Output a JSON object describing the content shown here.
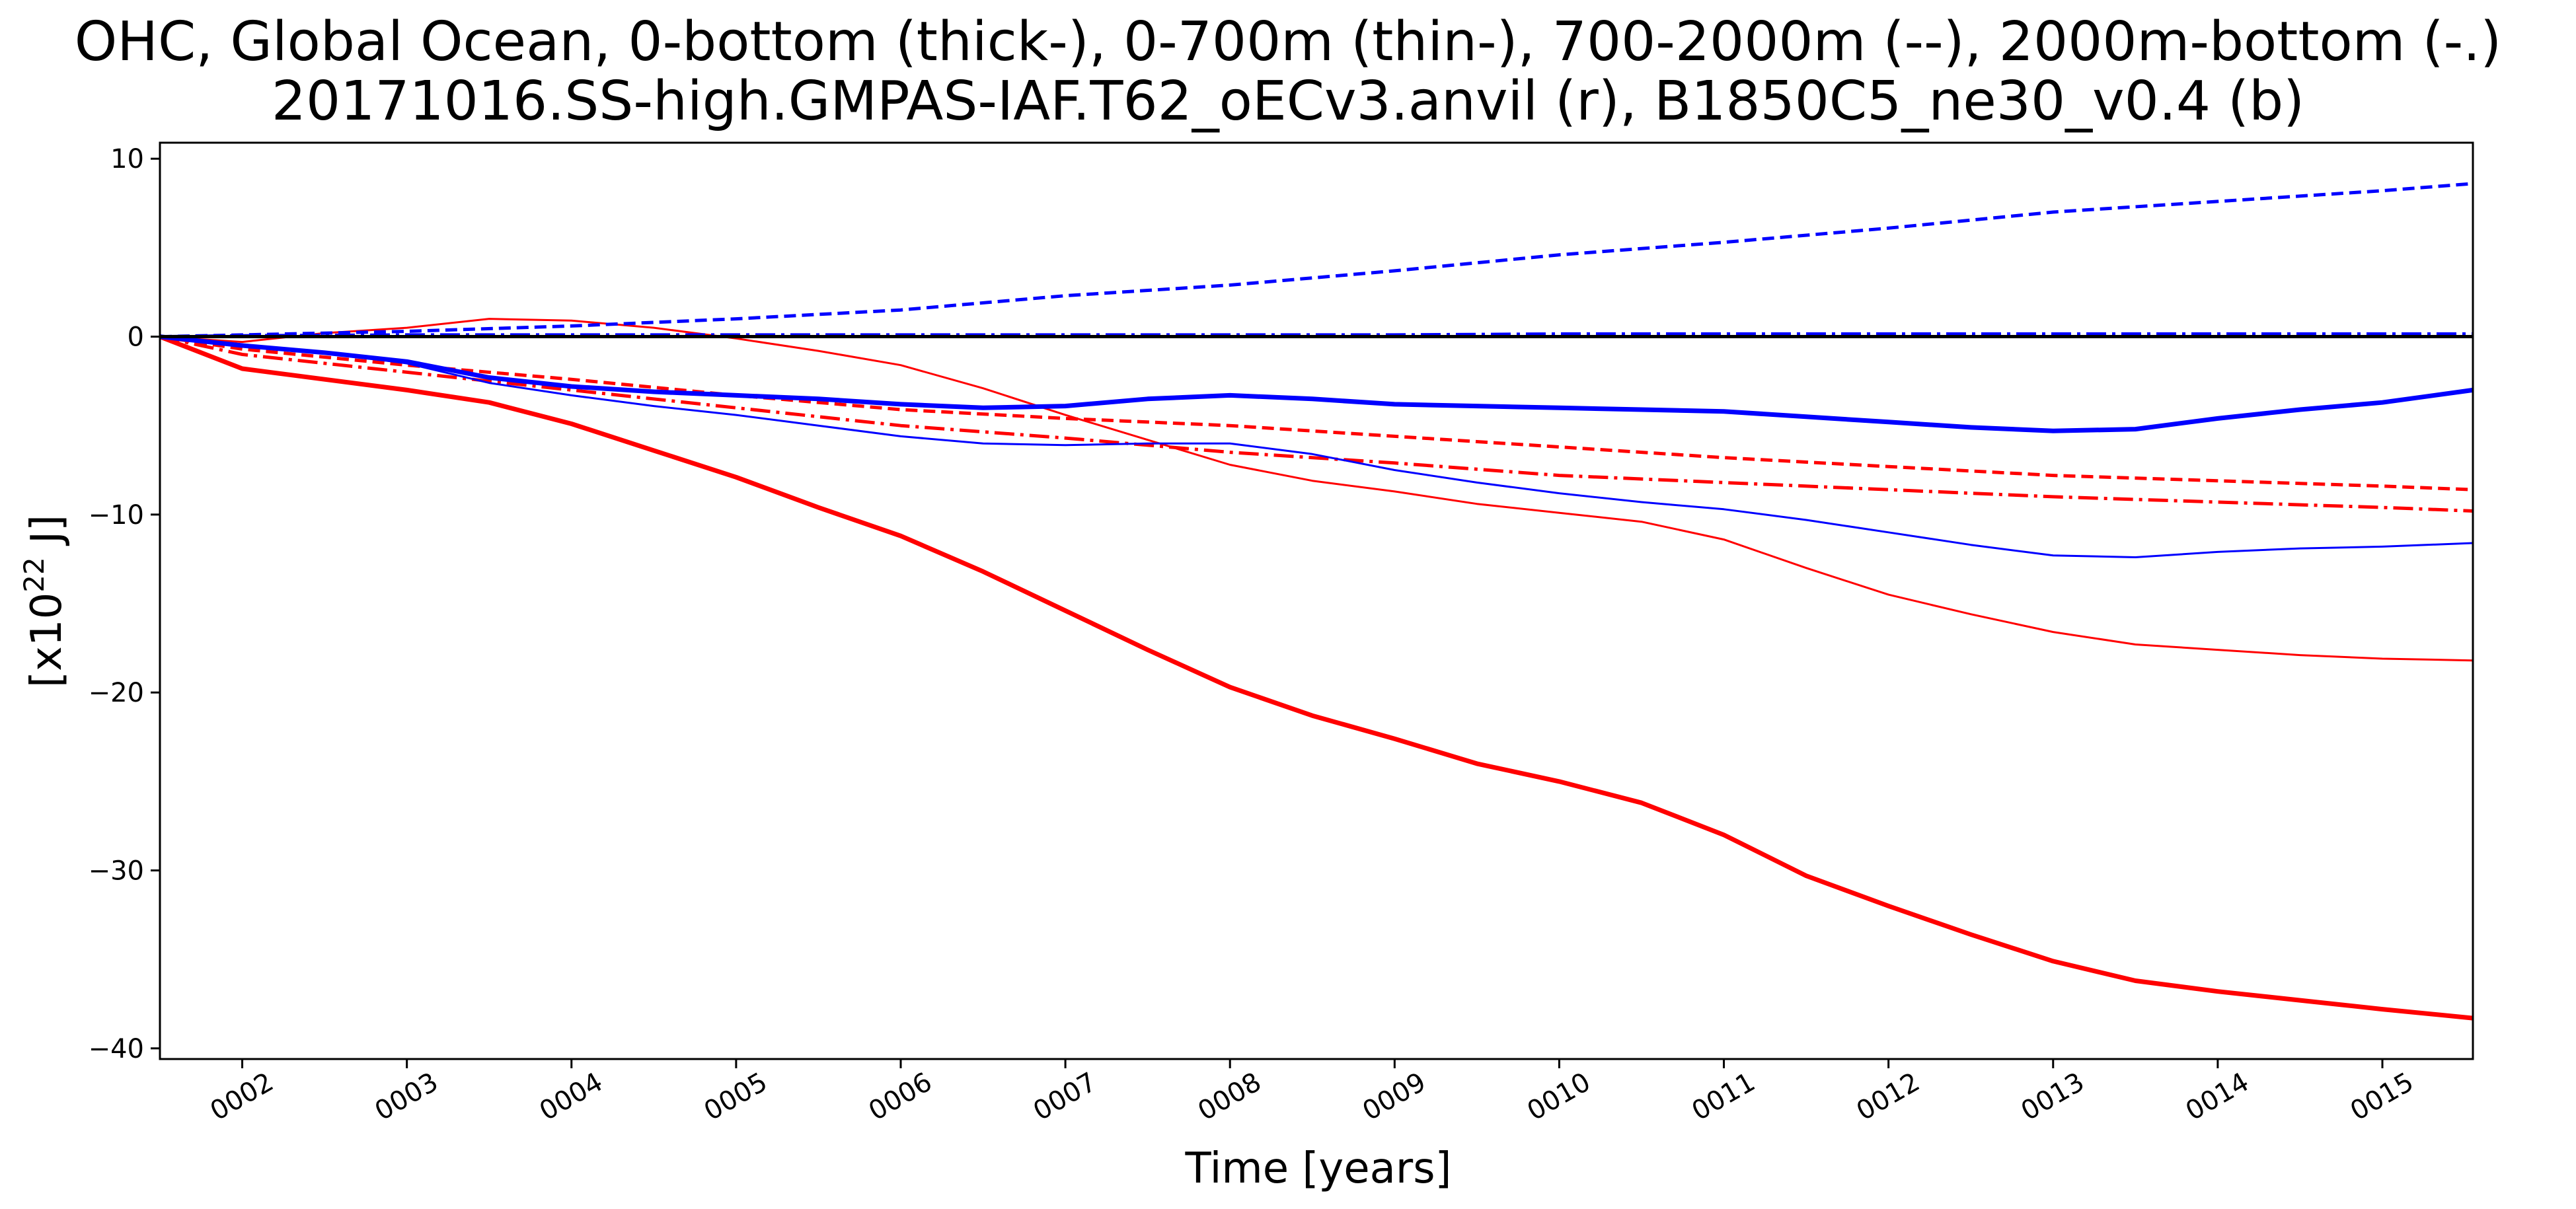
{
  "chart_data": {
    "type": "line",
    "title": "OHC, Global Ocean, 0-bottom (thick-), 0-700m (thin-), 700-2000m (--), 2000m-bottom (-.)",
    "subtitle": "20171016.SS-high.GMPAS-IAF.T62_oECv3.anvil (r), B1850C5_ne30_v0.4 (b)",
    "xlabel": "Time [years]",
    "ylabel_base": "[x10",
    "ylabel_exp": "22",
    "ylabel_unit": " J]",
    "xlim": [
      1.5,
      15.55
    ],
    "ylim": [
      -40.6,
      10.9
    ],
    "x_ticks": [
      {
        "value": 2,
        "label": "0002"
      },
      {
        "value": 3,
        "label": "0003"
      },
      {
        "value": 4,
        "label": "0004"
      },
      {
        "value": 5,
        "label": "0005"
      },
      {
        "value": 6,
        "label": "0006"
      },
      {
        "value": 7,
        "label": "0007"
      },
      {
        "value": 8,
        "label": "0008"
      },
      {
        "value": 9,
        "label": "0009"
      },
      {
        "value": 10,
        "label": "0010"
      },
      {
        "value": 11,
        "label": "0011"
      },
      {
        "value": 12,
        "label": "0012"
      },
      {
        "value": 13,
        "label": "0013"
      },
      {
        "value": 14,
        "label": "0014"
      },
      {
        "value": 15,
        "label": "0015"
      }
    ],
    "y_ticks": [
      {
        "value": 10,
        "label": "10"
      },
      {
        "value": 0,
        "label": "0"
      },
      {
        "value": -10,
        "label": "−10"
      },
      {
        "value": -20,
        "label": "−20"
      },
      {
        "value": -30,
        "label": "−30"
      },
      {
        "value": -40,
        "label": "−40"
      }
    ],
    "grid": false,
    "series": [
      {
        "color": "#ff0000",
        "width": 7,
        "dash": "solid",
        "x": [
          1.5,
          2.0,
          2.5,
          3.0,
          3.5,
          4.0,
          4.5,
          5.0,
          5.5,
          6.0,
          6.5,
          7.0,
          7.5,
          8.0,
          8.5,
          9.0,
          9.5,
          10.0,
          10.5,
          11.0,
          11.5,
          12.0,
          12.5,
          13.0,
          13.5,
          14.0,
          14.5,
          15.0,
          15.55
        ],
        "y": [
          0.0,
          -1.8,
          -2.4,
          -3.0,
          -3.7,
          -4.9,
          -6.4,
          -7.9,
          -9.6,
          -11.2,
          -13.2,
          -15.4,
          -17.6,
          -19.7,
          -21.3,
          -22.6,
          -24.0,
          -25.0,
          -26.2,
          -28.0,
          -30.3,
          -32.0,
          -33.6,
          -35.1,
          -36.2,
          -36.8,
          -37.3,
          -37.8,
          -38.3
        ]
      },
      {
        "color": "#ff0000",
        "width": 3,
        "dash": "solid",
        "x": [
          1.5,
          2.0,
          2.5,
          3.0,
          3.5,
          4.0,
          4.5,
          5.0,
          5.5,
          6.0,
          6.5,
          7.0,
          7.5,
          8.0,
          8.5,
          9.0,
          9.5,
          10.0,
          10.5,
          11.0,
          11.5,
          12.0,
          12.5,
          13.0,
          13.5,
          14.0,
          14.5,
          15.0,
          15.55
        ],
        "y": [
          0.0,
          -0.3,
          0.2,
          0.5,
          1.0,
          0.9,
          0.5,
          -0.1,
          -0.8,
          -1.6,
          -2.9,
          -4.4,
          -5.8,
          -7.2,
          -8.1,
          -8.7,
          -9.4,
          -9.9,
          -10.4,
          -11.4,
          -13.0,
          -14.5,
          -15.6,
          -16.6,
          -17.3,
          -17.6,
          -17.9,
          -18.1,
          -18.2
        ]
      },
      {
        "color": "#ff0000",
        "width": 5,
        "dash": "18 9",
        "x": [
          1.5,
          2.0,
          3.0,
          4.0,
          5.0,
          6.0,
          7.0,
          8.0,
          9.0,
          10.0,
          11.0,
          12.0,
          13.0,
          14.0,
          15.0,
          15.55
        ],
        "y": [
          0.0,
          -0.7,
          -1.6,
          -2.4,
          -3.3,
          -4.1,
          -4.6,
          -5.0,
          -5.6,
          -6.2,
          -6.8,
          -7.3,
          -7.8,
          -8.1,
          -8.4,
          -8.6
        ]
      },
      {
        "color": "#ff0000",
        "width": 5,
        "dash": "30 9 5 9",
        "x": [
          1.5,
          2.0,
          3.0,
          4.0,
          5.0,
          6.0,
          7.0,
          8.0,
          9.0,
          10.0,
          11.0,
          12.0,
          13.0,
          14.0,
          15.0,
          15.55
        ],
        "y": [
          0.0,
          -1.0,
          -2.0,
          -3.0,
          -4.0,
          -5.0,
          -5.7,
          -6.5,
          -7.1,
          -7.8,
          -8.2,
          -8.6,
          -9.0,
          -9.3,
          -9.6,
          -9.8
        ]
      },
      {
        "color": "#0000ff",
        "width": 7,
        "dash": "solid",
        "x": [
          1.5,
          2.0,
          2.5,
          3.0,
          3.5,
          4.0,
          4.5,
          5.0,
          5.5,
          6.0,
          6.5,
          7.0,
          7.5,
          8.0,
          8.5,
          9.0,
          9.5,
          10.0,
          10.5,
          11.0,
          11.5,
          12.0,
          12.5,
          13.0,
          13.5,
          14.0,
          14.5,
          15.0,
          15.55
        ],
        "y": [
          0.0,
          -0.5,
          -0.9,
          -1.4,
          -2.3,
          -2.8,
          -3.1,
          -3.3,
          -3.5,
          -3.8,
          -4.0,
          -3.9,
          -3.5,
          -3.3,
          -3.5,
          -3.8,
          -3.9,
          -4.0,
          -4.1,
          -4.2,
          -4.5,
          -4.8,
          -5.1,
          -5.3,
          -5.2,
          -4.6,
          -4.1,
          -3.7,
          -3.0
        ]
      },
      {
        "color": "#0000ff",
        "width": 3,
        "dash": "solid",
        "x": [
          1.5,
          2.0,
          2.5,
          3.0,
          3.5,
          4.0,
          4.5,
          5.0,
          5.5,
          6.0,
          6.5,
          7.0,
          7.5,
          8.0,
          8.5,
          9.0,
          9.5,
          10.0,
          10.5,
          11.0,
          11.5,
          12.0,
          12.5,
          13.0,
          13.5,
          14.0,
          14.5,
          15.0,
          15.55
        ],
        "y": [
          0.0,
          -0.5,
          -0.9,
          -1.5,
          -2.6,
          -3.3,
          -3.9,
          -4.4,
          -5.0,
          -5.6,
          -6.0,
          -6.1,
          -6.0,
          -6.0,
          -6.6,
          -7.5,
          -8.2,
          -8.8,
          -9.3,
          -9.7,
          -10.3,
          -11.0,
          -11.7,
          -12.3,
          -12.4,
          -12.1,
          -11.9,
          -11.8,
          -11.6
        ]
      },
      {
        "color": "#0000ff",
        "width": 5,
        "dash": "18 9",
        "x": [
          1.5,
          2.0,
          3.0,
          4.0,
          5.0,
          6.0,
          7.0,
          8.0,
          9.0,
          10.0,
          11.0,
          12.0,
          13.0,
          14.0,
          15.0,
          15.55
        ],
        "y": [
          0.0,
          0.1,
          0.3,
          0.6,
          1.0,
          1.5,
          2.3,
          2.9,
          3.7,
          4.6,
          5.3,
          6.1,
          7.0,
          7.6,
          8.2,
          8.6
        ]
      },
      {
        "color": "#0000ff",
        "width": 5,
        "dash": "30 9 5 9",
        "x": [
          1.5,
          2.0,
          3.0,
          4.0,
          5.0,
          6.0,
          7.0,
          8.0,
          9.0,
          10.0,
          11.0,
          12.0,
          13.0,
          14.0,
          15.0,
          15.55
        ],
        "y": [
          0.0,
          0.05,
          0.1,
          0.1,
          0.1,
          0.1,
          0.1,
          0.1,
          0.1,
          0.15,
          0.15,
          0.15,
          0.15,
          0.15,
          0.15,
          0.15
        ]
      }
    ],
    "reference_line": {
      "y": 0,
      "color": "#000000"
    }
  }
}
